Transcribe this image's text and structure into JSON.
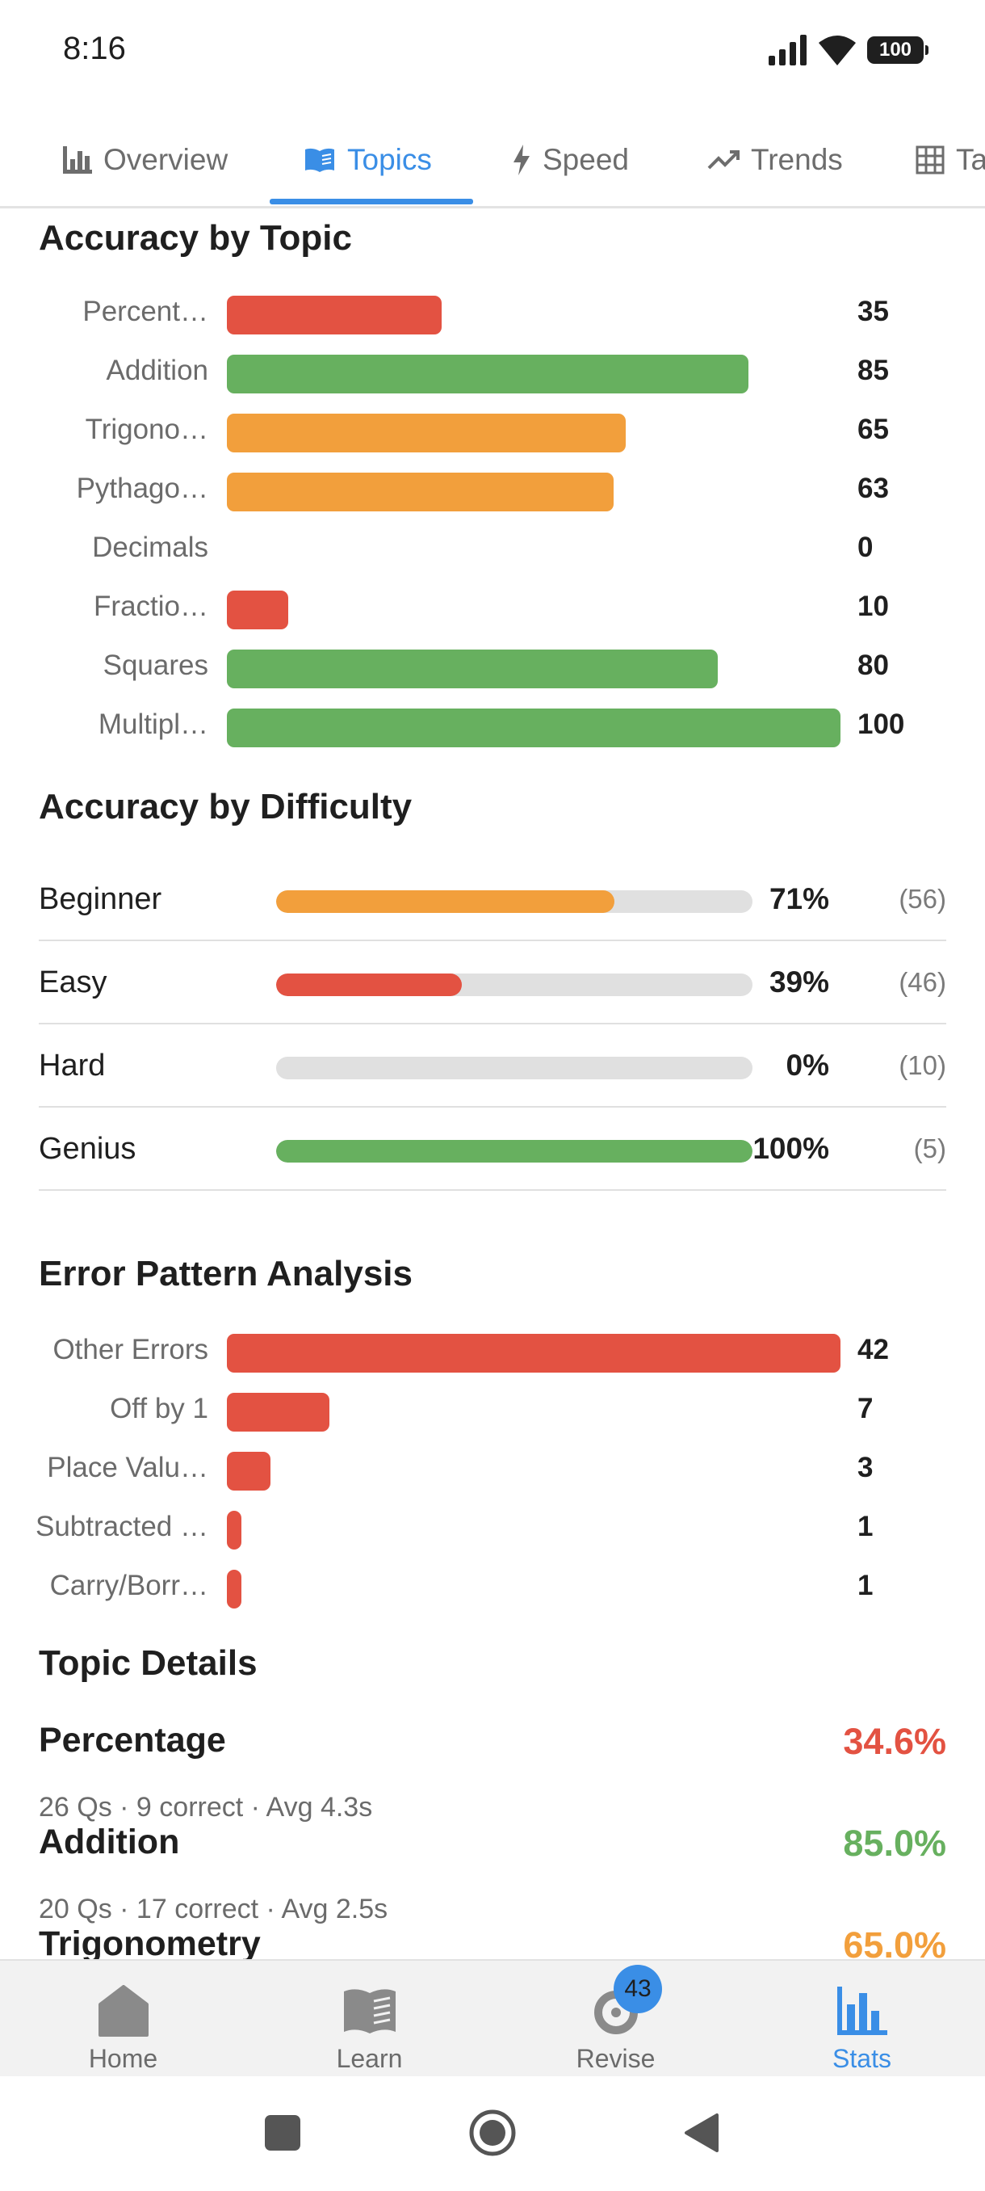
{
  "status_bar": {
    "time": "8:16",
    "battery": "100"
  },
  "tabs": [
    {
      "label": "Overview",
      "icon": "bar-chart-icon"
    },
    {
      "label": "Topics",
      "icon": "book-icon",
      "active": true
    },
    {
      "label": "Speed",
      "icon": "bolt-icon"
    },
    {
      "label": "Trends",
      "icon": "trending-up-icon"
    },
    {
      "label": "Table",
      "icon": "grid-icon"
    }
  ],
  "accuracy_by_topic": {
    "title": "Accuracy by Topic",
    "items": [
      {
        "label": "Percent…",
        "value": "35",
        "color": "#e35242"
      },
      {
        "label": "Addition",
        "value": "85",
        "color": "#67b05f"
      },
      {
        "label": "Trigono…",
        "value": "65",
        "color": "#f29f3c"
      },
      {
        "label": "Pythago…",
        "value": "63",
        "color": "#f29f3c"
      },
      {
        "label": "Decimals",
        "value": "0",
        "color": "#e35242"
      },
      {
        "label": "Fractio…",
        "value": "10",
        "color": "#e35242"
      },
      {
        "label": "Squares",
        "value": "80",
        "color": "#67b05f"
      },
      {
        "label": "Multipl…",
        "value": "100",
        "color": "#67b05f"
      }
    ]
  },
  "accuracy_by_difficulty": {
    "title": "Accuracy by Difficulty",
    "items": [
      {
        "label": "Beginner",
        "pct": "71%",
        "fraction": 0.71,
        "count": "(56)",
        "color": "#f29f3c"
      },
      {
        "label": "Easy",
        "pct": "39%",
        "fraction": 0.39,
        "count": "(46)",
        "color": "#e35242"
      },
      {
        "label": "Hard",
        "pct": "0%",
        "fraction": 0,
        "count": "(10)",
        "color": "#e35242"
      },
      {
        "label": "Genius",
        "pct": "100%",
        "fraction": 1,
        "count": "(5)",
        "color": "#67b05f"
      }
    ]
  },
  "error_patterns": {
    "title": "Error Pattern Analysis",
    "max": 42,
    "color": "#e35242",
    "items": [
      {
        "label": "Other Errors",
        "value": "42"
      },
      {
        "label": "Off by 1",
        "value": "7"
      },
      {
        "label": "Place Valu…",
        "value": "3"
      },
      {
        "label": "Subtracted …",
        "value": "1"
      },
      {
        "label": "Carry/Borr…",
        "value": "1"
      }
    ]
  },
  "topic_details": {
    "title": "Topic Details",
    "items": [
      {
        "name": "Percentage",
        "pct": "34.6%",
        "sub": "26 Qs · 9 correct · Avg 4.3s",
        "color": "#e35242"
      },
      {
        "name": "Addition",
        "pct": "85.0%",
        "sub": "20 Qs · 17 correct · Avg 2.5s",
        "color": "#67b05f"
      },
      {
        "name": "Trigonometry",
        "pct": "65.0%",
        "sub": "",
        "color": "#f29f3c"
      }
    ]
  },
  "bottom_nav": [
    {
      "label": "Home",
      "icon": "home-icon"
    },
    {
      "label": "Learn",
      "icon": "book-open-icon"
    },
    {
      "label": "Revise",
      "icon": "refresh-icon",
      "badge": "43"
    },
    {
      "label": "Stats",
      "icon": "stats-icon",
      "active": true
    }
  ],
  "colors": {
    "accent": "#3a8ee6",
    "red": "#e35242",
    "green": "#67b05f",
    "orange": "#f29f3c"
  }
}
